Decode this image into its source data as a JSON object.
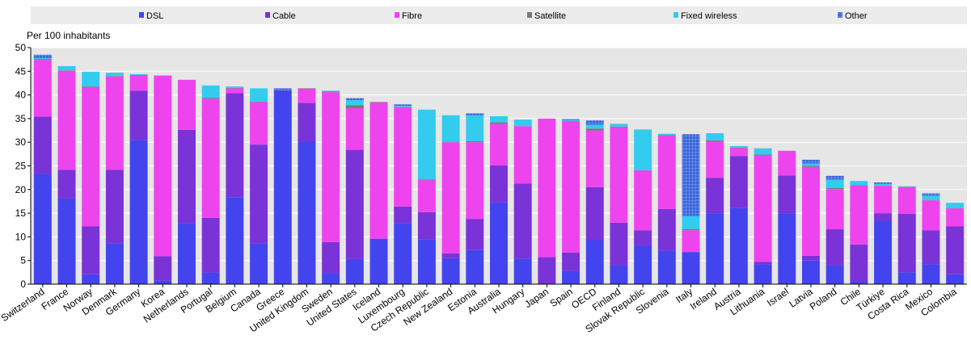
{
  "chart_data": {
    "type": "bar",
    "stacked": true,
    "title": "",
    "xlabel": "",
    "ylabel": "Per 100 inhabitants",
    "ylim": [
      0,
      50
    ],
    "yticks": [
      0,
      5,
      10,
      15,
      20,
      25,
      30,
      35,
      40,
      45,
      50
    ],
    "grid": true,
    "legend": "top",
    "categories": [
      "Switzerland",
      "France",
      "Norway",
      "Denmark",
      "Germany",
      "Korea",
      "Netherlands",
      "Portugal",
      "Belgium",
      "Canada",
      "Greece",
      "United Kingdom",
      "Sweden",
      "United States",
      "Iceland",
      "Luxembourg",
      "Czech Republic",
      "New Zealand",
      "Estonia",
      "Australia",
      "Hungary",
      "Japan",
      "Spain",
      "OECD",
      "Finland",
      "Slovak Republic",
      "Slovenia",
      "Italy",
      "Ireland",
      "Austria",
      "Lithuania",
      "Israel",
      "Latvia",
      "Poland",
      "Chile",
      "Türkiye",
      "Costa Rica",
      "Mexico",
      "Colombia"
    ],
    "series": [
      {
        "name": "DSL",
        "color": "#4444ee",
        "values": [
          23.3,
          18.1,
          2.1,
          8.6,
          30.5,
          0.8,
          12.9,
          2.4,
          18.4,
          8.6,
          41.0,
          30.2,
          2.3,
          5.3,
          9.6,
          12.9,
          9.5,
          5.5,
          7.3,
          17.3,
          5.4,
          0.0,
          2.8,
          9.3,
          4.0,
          8.2,
          7.1,
          6.8,
          15.0,
          16.1,
          4.2,
          15.0,
          5.0,
          4.0,
          0.6,
          13.4,
          2.5,
          4.2,
          2.1
        ]
      },
      {
        "name": "Cable",
        "color": "#7a33d6",
        "values": [
          12.1,
          6.1,
          10.1,
          15.6,
          10.4,
          5.1,
          19.7,
          11.6,
          22.0,
          20.9,
          0.0,
          8.1,
          6.6,
          23.1,
          0.0,
          3.5,
          5.7,
          1.0,
          6.5,
          7.8,
          15.9,
          5.7,
          3.9,
          11.2,
          9.0,
          3.2,
          8.8,
          0.0,
          7.5,
          11.0,
          0.5,
          8.0,
          1.0,
          7.6,
          7.8,
          1.6,
          12.4,
          7.2,
          10.1
        ]
      },
      {
        "name": "Fibre",
        "color": "#ee44ee",
        "values": [
          12.0,
          20.9,
          29.5,
          19.7,
          3.2,
          38.2,
          10.6,
          25.2,
          1.0,
          9.0,
          0.0,
          3.0,
          31.7,
          8.8,
          28.8,
          21.0,
          6.8,
          23.5,
          16.2,
          8.8,
          12.1,
          29.3,
          27.6,
          12.0,
          20.2,
          12.7,
          15.5,
          4.6,
          7.7,
          1.7,
          22.6,
          5.2,
          18.8,
          8.5,
          12.5,
          5.8,
          5.6,
          6.3,
          3.8
        ]
      },
      {
        "name": "Satellite",
        "color": "#777777",
        "values": [
          0.2,
          0.1,
          0.1,
          0.1,
          0.1,
          0.0,
          0.0,
          0.2,
          0.1,
          0.1,
          0.1,
          0.1,
          0.1,
          0.6,
          0.1,
          0.1,
          0.1,
          0.1,
          0.2,
          0.3,
          0.0,
          0.0,
          0.1,
          0.4,
          0.1,
          0.0,
          0.1,
          0.2,
          0.2,
          0.1,
          0.1,
          0.0,
          0.2,
          0.2,
          0.0,
          0.0,
          0.1,
          0.1,
          0.1
        ]
      },
      {
        "name": "Fixed wireless",
        "color": "#33ccee",
        "values": [
          0.2,
          0.9,
          3.1,
          0.7,
          0.2,
          0.0,
          0.0,
          2.6,
          0.3,
          2.8,
          0.0,
          0.0,
          0.2,
          1.1,
          0.0,
          0.2,
          14.8,
          5.6,
          5.5,
          1.3,
          1.4,
          0.0,
          0.2,
          0.8,
          0.6,
          8.6,
          0.3,
          2.8,
          1.5,
          0.3,
          1.2,
          0.0,
          0.5,
          1.8,
          0.9,
          0.4,
          0.1,
          0.9,
          1.1
        ]
      },
      {
        "name": "Other",
        "color": "#3a66dd",
        "values": [
          0.7,
          0.0,
          0.0,
          0.0,
          0.0,
          0.0,
          0.0,
          0.0,
          0.0,
          0.0,
          0.3,
          0.0,
          0.0,
          0.4,
          0.0,
          0.3,
          0.0,
          0.0,
          0.4,
          0.0,
          0.0,
          0.0,
          0.3,
          0.9,
          0.0,
          0.0,
          0.0,
          17.3,
          0.0,
          0.0,
          0.1,
          0.0,
          0.8,
          0.8,
          0.0,
          0.3,
          0.0,
          0.5,
          0.0
        ]
      }
    ]
  }
}
